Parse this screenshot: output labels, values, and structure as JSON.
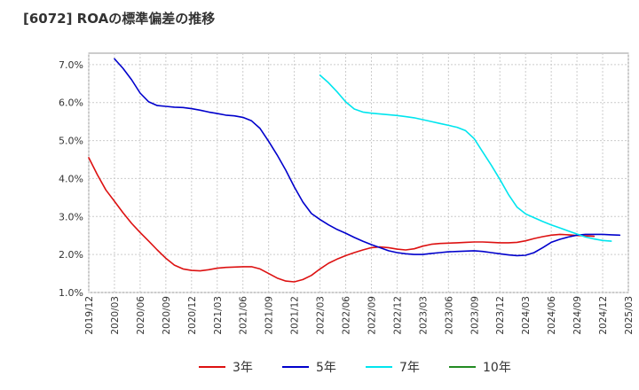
{
  "chart_data": {
    "type": "line",
    "title": "[6072]  ROAの標準偏差の推移",
    "xlabel": "",
    "ylabel": "",
    "ylim": [
      1.0,
      7.3
    ],
    "yticks": [
      1.0,
      2.0,
      3.0,
      4.0,
      5.0,
      6.0,
      7.0
    ],
    "ytick_labels": [
      "1.0%",
      "2.0%",
      "3.0%",
      "4.0%",
      "5.0%",
      "6.0%",
      "7.0%"
    ],
    "x_ticks": [
      "2019/12",
      "2020/03",
      "2020/06",
      "2020/09",
      "2020/12",
      "2021/03",
      "2021/06",
      "2021/09",
      "2021/12",
      "2022/03",
      "2022/06",
      "2022/09",
      "2022/12",
      "2023/03",
      "2023/06",
      "2023/09",
      "2023/12",
      "2024/03",
      "2024/06",
      "2024/09",
      "2024/12",
      "2025/03"
    ],
    "x_index_range": [
      0,
      63
    ],
    "grid": true,
    "legend_position": "bottom",
    "series": [
      {
        "name": "3年",
        "color": "#dd1111",
        "start_index": 0,
        "values": [
          4.55,
          4.1,
          3.7,
          3.4,
          3.1,
          2.82,
          2.58,
          2.35,
          2.12,
          1.9,
          1.72,
          1.62,
          1.58,
          1.57,
          1.6,
          1.64,
          1.66,
          1.67,
          1.68,
          1.68,
          1.62,
          1.5,
          1.38,
          1.3,
          1.28,
          1.34,
          1.45,
          1.62,
          1.77,
          1.88,
          1.97,
          2.05,
          2.12,
          2.18,
          2.2,
          2.18,
          2.14,
          2.12,
          2.15,
          2.22,
          2.27,
          2.29,
          2.3,
          2.31,
          2.32,
          2.33,
          2.33,
          2.32,
          2.31,
          2.31,
          2.32,
          2.36,
          2.42,
          2.47,
          2.51,
          2.53,
          2.52,
          2.5,
          2.49,
          2.48
        ]
      },
      {
        "name": "5年",
        "color": "#0000cc",
        "start_index": 3,
        "values": [
          7.15,
          6.9,
          6.6,
          6.25,
          6.02,
          5.92,
          5.9,
          5.88,
          5.87,
          5.84,
          5.8,
          5.75,
          5.71,
          5.67,
          5.65,
          5.61,
          5.52,
          5.32,
          4.98,
          4.62,
          4.22,
          3.78,
          3.38,
          3.08,
          2.92,
          2.78,
          2.66,
          2.56,
          2.45,
          2.35,
          2.26,
          2.18,
          2.1,
          2.05,
          2.02,
          2.0,
          2.0,
          2.03,
          2.05,
          2.07,
          2.08,
          2.09,
          2.1,
          2.08,
          2.05,
          2.02,
          1.99,
          1.97,
          1.98,
          2.05,
          2.18,
          2.32,
          2.4,
          2.46,
          2.51,
          2.53,
          2.53,
          2.53,
          2.52,
          2.51
        ]
      },
      {
        "name": "7年",
        "color": "#00e5ee",
        "start_index": 27,
        "values": [
          6.72,
          6.52,
          6.28,
          6.02,
          5.83,
          5.75,
          5.72,
          5.7,
          5.68,
          5.66,
          5.63,
          5.6,
          5.55,
          5.5,
          5.45,
          5.4,
          5.35,
          5.26,
          5.05,
          4.7,
          4.35,
          3.98,
          3.58,
          3.25,
          3.07,
          2.97,
          2.87,
          2.78,
          2.7,
          2.62,
          2.54,
          2.46,
          2.41,
          2.37,
          2.35
        ]
      },
      {
        "name": "10年",
        "color": "#228b22",
        "start_index": 0,
        "values": []
      }
    ]
  }
}
